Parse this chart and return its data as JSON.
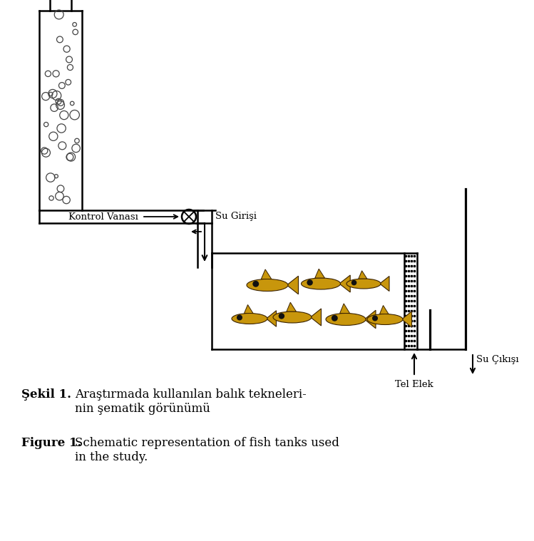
{
  "title_turkish": "Şekil 1.",
  "title_turkish_text": "Araştırmada kullanılan balık tekneleri-\nnin şematik görünümü",
  "title_english": "Figure 1.",
  "title_english_text": "Schematic representation of fish tanks used\nin the study.",
  "label_kontrol": "Kontrol Vanası",
  "label_su_girisi": "Su Girişi",
  "label_tel_elek": "Tel Elek",
  "label_su_cikisi": "Su Çıkışı",
  "line_color": "#000000",
  "bg_color": "#ffffff",
  "fish_color": "#c8960c",
  "bubble_color": "#666666"
}
